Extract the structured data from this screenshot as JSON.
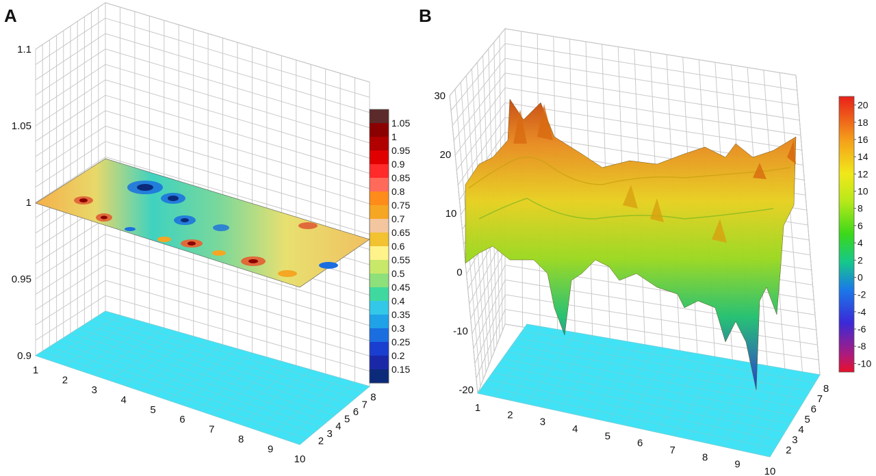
{
  "chart_data": [
    {
      "panel": "A",
      "type": "surface3d",
      "plane_value": 1.0,
      "zlim": [
        0.9,
        1.1
      ],
      "z_ticks": [
        "0.9",
        "0.95",
        "1",
        "1.05",
        "1.1"
      ],
      "x_ticks": [
        "1",
        "2",
        "3",
        "4",
        "5",
        "6",
        "7",
        "8",
        "9",
        "10"
      ],
      "y_ticks": [
        "2",
        "3",
        "4",
        "5",
        "6",
        "7",
        "8"
      ],
      "floor_color": "#3fe3f5",
      "colorbar": {
        "labels": [
          "1.05",
          "1",
          "0.95",
          "0.9",
          "0.85",
          "0.8",
          "0.75",
          "0.7",
          "0.65",
          "0.6",
          "0.55",
          "0.5",
          "0.45",
          "0.4",
          "0.35",
          "0.3",
          "0.25",
          "0.2",
          "0.15"
        ],
        "colors": [
          "#5c2a2a",
          "#8b0000",
          "#b00000",
          "#e00000",
          "#ff2a2a",
          "#ff6a5a",
          "#ff8c1a",
          "#f5a623",
          "#f4c6a0",
          "#f2c230",
          "#fff38a",
          "#c8e86a",
          "#8ee07a",
          "#3fd9a0",
          "#33c8e8",
          "#1fa2e8",
          "#1a6ee0",
          "#1a3ed0",
          "#1a28a8",
          "#0c2a7a"
        ]
      }
    },
    {
      "panel": "B",
      "type": "surface3d",
      "zlim": [
        -20,
        30
      ],
      "z_ticks": [
        "-20",
        "-10",
        "0",
        "10",
        "20",
        "30"
      ],
      "x_ticks": [
        "1",
        "2",
        "3",
        "4",
        "5",
        "6",
        "7",
        "8",
        "9",
        "10"
      ],
      "y_ticks": [
        "2",
        "3",
        "4",
        "5",
        "6",
        "7",
        "8"
      ],
      "floor_color": "#3fe3f5",
      "colorbar": {
        "labels": [
          "20",
          "18",
          "16",
          "14",
          "12",
          "10",
          "8",
          "6",
          "4",
          "2",
          "0",
          "-2",
          "-4",
          "-6",
          "-8",
          "-10"
        ],
        "range": [
          -11,
          21
        ]
      }
    }
  ],
  "labels": {
    "panel_a": "A",
    "panel_b": "B"
  }
}
